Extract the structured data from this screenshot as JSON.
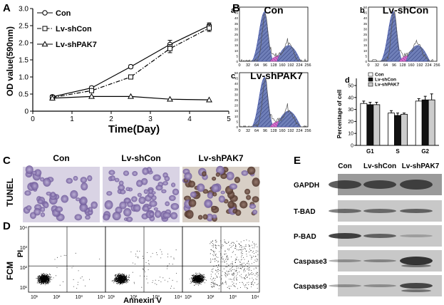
{
  "panel_labels": {
    "a": "A",
    "b": "B",
    "c": "C",
    "d": "D",
    "e": "E"
  },
  "panelA": {
    "chart_data": {
      "type": "line",
      "xlabel": "Time(Day)",
      "ylabel": "OD value(590nm)",
      "xlim": [
        0,
        5
      ],
      "ylim": [
        0,
        3.0
      ],
      "x_ticks": [
        "0",
        "1",
        "2",
        "3",
        "4",
        "5"
      ],
      "y_ticks": [
        "0",
        "0.5",
        "1.0",
        "1.5",
        "2.0",
        "2.5",
        "3.0"
      ],
      "legend_position": "top-left",
      "series": [
        {
          "name": "Con",
          "marker": "circle",
          "style": "solid",
          "x": [
            0.5,
            1.5,
            2.5,
            3.5,
            4.5
          ],
          "y": [
            0.42,
            0.68,
            1.3,
            1.95,
            2.5
          ],
          "err": [
            0.03,
            0.05,
            0.05,
            0.12,
            0.08
          ]
        },
        {
          "name": "Lv-shCon",
          "marker": "square",
          "style": "dashdot",
          "x": [
            0.5,
            1.5,
            2.5,
            3.5,
            4.5
          ],
          "y": [
            0.4,
            0.6,
            1.0,
            1.83,
            2.43
          ],
          "err": [
            0.03,
            0.04,
            0.05,
            0.12,
            0.1
          ]
        },
        {
          "name": "Lv-shPAK7",
          "marker": "triangle",
          "style": "solid",
          "x": [
            0.5,
            1.5,
            2.5,
            3.5,
            4.5
          ],
          "y": [
            0.38,
            0.43,
            0.43,
            0.35,
            0.33
          ],
          "err": [
            0.02,
            0.02,
            0.02,
            0.02,
            0.02
          ]
        }
      ]
    }
  },
  "panelB": {
    "histograms": [
      {
        "sub": "a",
        "title": "Con"
      },
      {
        "sub": "b",
        "title": "Lv-shCon"
      },
      {
        "sub": "c",
        "title": "Lv-shPAK7"
      }
    ],
    "x_ticks": [
      "0",
      "32",
      "64",
      "96",
      "128",
      "160",
      "192",
      "224",
      "256"
    ],
    "y_ticks": [
      "0",
      "5",
      "10",
      "15",
      "20",
      "25",
      "30",
      "35",
      "40",
      "45",
      "50"
    ]
  },
  "panelBd": {
    "chart_data": {
      "type": "bar",
      "sub": "d",
      "ylabel": "Percentage of cell",
      "categories": [
        "G1",
        "S",
        "G2"
      ],
      "ylim": [
        0,
        50
      ],
      "y_ticks": [
        "0",
        "10",
        "20",
        "30",
        "40",
        "50"
      ],
      "legend_position": "top",
      "series": [
        {
          "name": "Con",
          "fill": "#ffffff",
          "values": [
            35,
            27,
            37
          ],
          "err": [
            2,
            2,
            2
          ]
        },
        {
          "name": "Lv-shCon",
          "fill": "#111111",
          "values": [
            34,
            25,
            38
          ],
          "err": [
            2,
            2,
            3
          ]
        },
        {
          "name": "Lv-shPAK7",
          "fill": "#cccccc",
          "values": [
            34,
            26,
            38
          ],
          "err": [
            2,
            1,
            5
          ]
        }
      ]
    }
  },
  "panelC": {
    "row_label": "TUNEL",
    "columns": [
      "Con",
      "Lv-shCon",
      "Lv-shPAK7"
    ]
  },
  "panelD": {
    "row_label": "FCM",
    "y_axis": "PI",
    "x_axis": "Annexin V",
    "ticks": [
      "10¹",
      "10²",
      "10³",
      "10⁴"
    ]
  },
  "panelE": {
    "columns": [
      "Con",
      "Lv-shCon",
      "Lv-shPAK7"
    ],
    "rows": [
      "GAPDH",
      "T-BAD",
      "P-BAD",
      "Caspase3",
      "Caspase9"
    ]
  }
}
